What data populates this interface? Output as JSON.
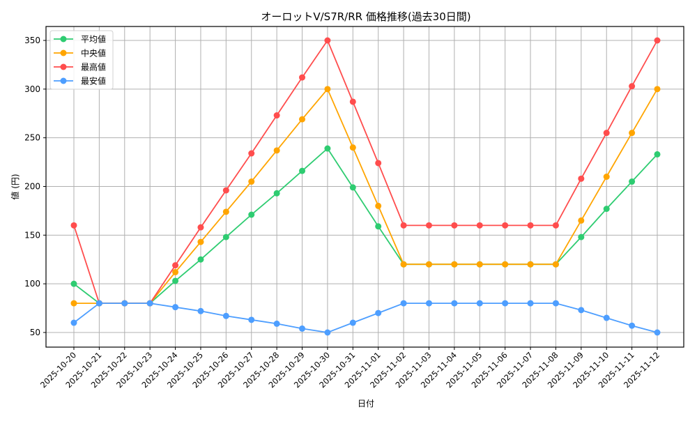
{
  "chart_data": {
    "type": "line",
    "title": "オーロットV/S7R/RR 価格推移(過去30日間)",
    "xlabel": "日付",
    "ylabel": "値 (円)",
    "ylim": [
      35,
      365
    ],
    "yticks": [
      50,
      100,
      150,
      200,
      250,
      300,
      350
    ],
    "grid": true,
    "legend_position": "upper left",
    "categories": [
      "2025-10-20",
      "2025-10-21",
      "2025-10-22",
      "2025-10-23",
      "2025-10-24",
      "2025-10-25",
      "2025-10-26",
      "2025-10-27",
      "2025-10-28",
      "2025-10-29",
      "2025-10-30",
      "2025-10-31",
      "2025-11-01",
      "2025-11-02",
      "2025-11-03",
      "2025-11-04",
      "2025-11-05",
      "2025-11-06",
      "2025-11-07",
      "2025-11-08",
      "2025-11-09",
      "2025-11-10",
      "2025-11-11",
      "2025-11-12"
    ],
    "series": [
      {
        "name": "平均値",
        "color": "#2ecc71",
        "values": [
          100,
          80,
          80,
          80,
          103,
          125,
          148,
          171,
          193,
          216,
          239,
          199,
          159,
          120,
          120,
          120,
          120,
          120,
          120,
          120,
          148,
          177,
          205,
          233
        ]
      },
      {
        "name": "中央値",
        "color": "#ffa500",
        "values": [
          80,
          80,
          80,
          80,
          112,
          143,
          174,
          205,
          237,
          269,
          300,
          240,
          180,
          120,
          120,
          120,
          120,
          120,
          120,
          120,
          165,
          210,
          255,
          300
        ]
      },
      {
        "name": "最高値",
        "color": "#ff4d4d",
        "values": [
          160,
          80,
          80,
          80,
          119,
          158,
          196,
          234,
          273,
          312,
          350,
          287,
          224,
          160,
          160,
          160,
          160,
          160,
          160,
          160,
          208,
          255,
          303,
          350
        ]
      },
      {
        "name": "最安値",
        "color": "#4d9eff",
        "values": [
          60,
          80,
          80,
          80,
          76,
          72,
          67,
          63,
          59,
          54,
          50,
          60,
          70,
          80,
          80,
          80,
          80,
          80,
          80,
          80,
          73,
          65,
          57,
          50
        ]
      }
    ]
  }
}
